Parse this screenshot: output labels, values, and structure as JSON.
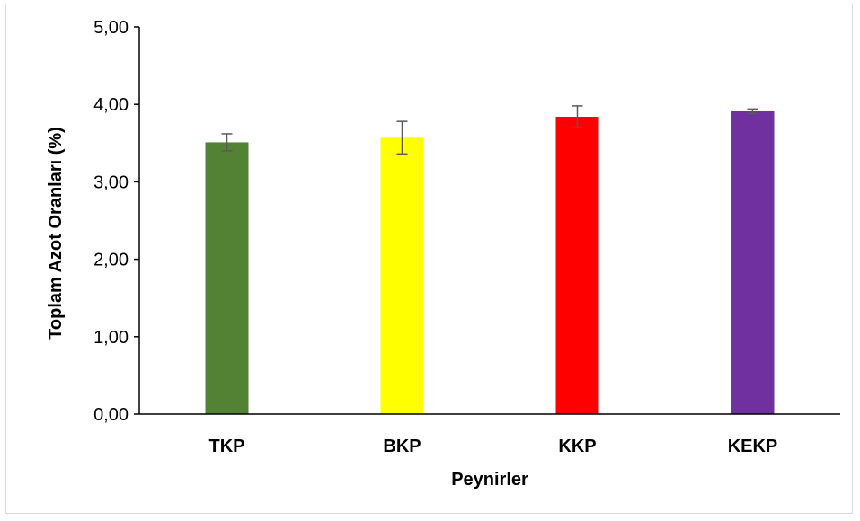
{
  "chart_data": {
    "type": "bar",
    "title": "",
    "xlabel": "Peynirler",
    "ylabel": "Toplam Azot Oranları (%)",
    "ylim": [
      0,
      5
    ],
    "yticks": [
      "0,00",
      "1,00",
      "2,00",
      "3,00",
      "4,00",
      "5,00"
    ],
    "categories": [
      "TKP",
      "BKP",
      "KKP",
      "KEKP"
    ],
    "values": [
      3.51,
      3.57,
      3.84,
      3.91
    ],
    "errors": [
      0.11,
      0.21,
      0.14,
      0.03
    ],
    "colors": [
      "#548235",
      "#ffff00",
      "#ff0000",
      "#7030a0"
    ],
    "grid": false,
    "legend": "none"
  }
}
